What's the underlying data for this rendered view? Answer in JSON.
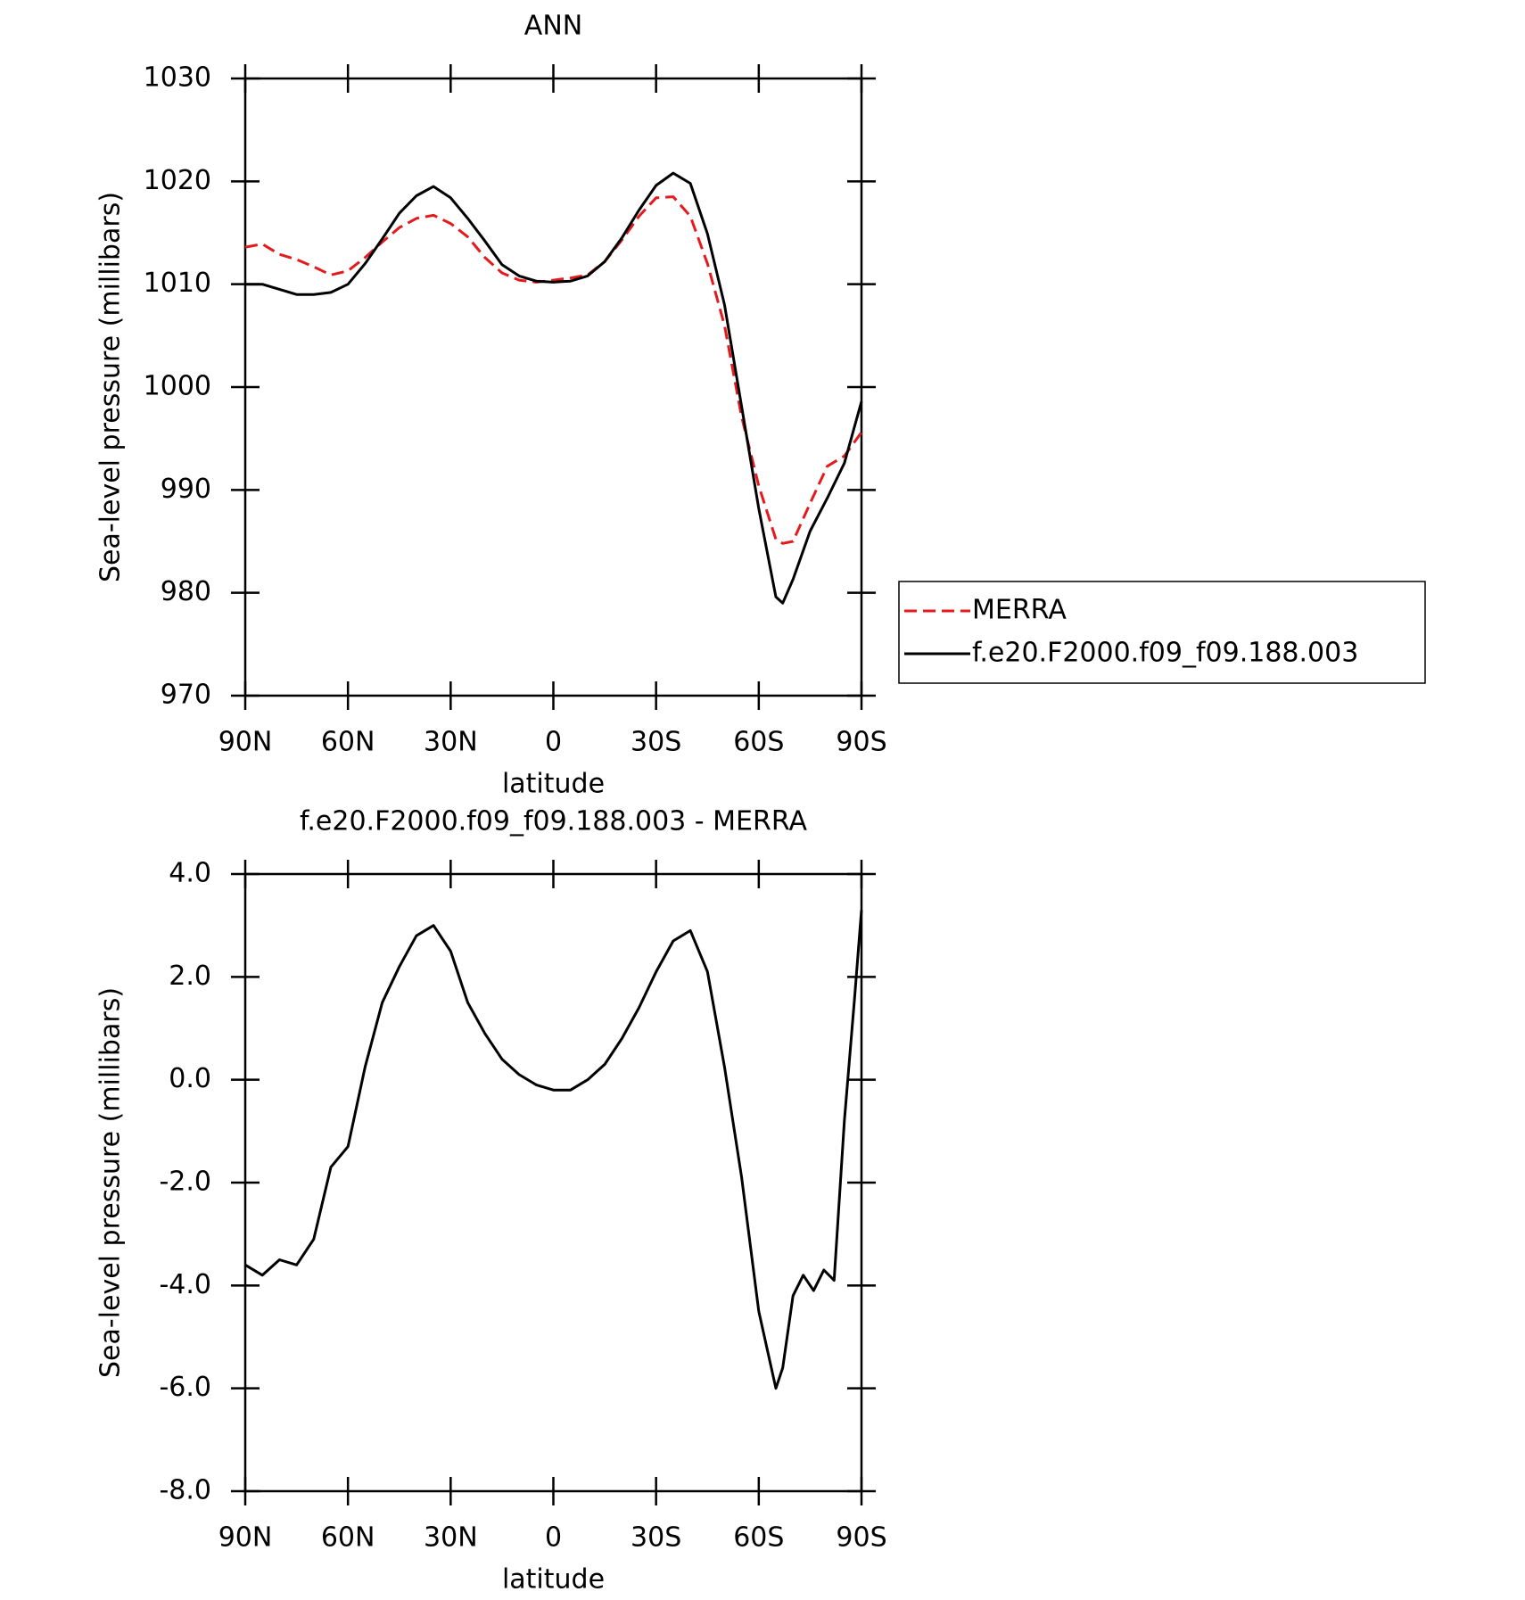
{
  "chart_data": [
    {
      "type": "line",
      "title": "ANN",
      "xlabel": "latitude",
      "ylabel": "Sea-level pressure (millibars)",
      "x": [
        90,
        85,
        80,
        75,
        70,
        65,
        60,
        55,
        50,
        45,
        40,
        35,
        30,
        25,
        20,
        15,
        10,
        5,
        0,
        -5,
        -10,
        -15,
        -20,
        -25,
        -30,
        -35,
        -40,
        -45,
        -50,
        -55,
        -60,
        -65,
        -67,
        -70,
        -75,
        -80,
        -85,
        -90
      ],
      "series": [
        {
          "name": "MERRA",
          "color": "#e41a1c",
          "linestyle": "dashed",
          "values": [
            1013.6,
            1013.9,
            1012.9,
            1012.4,
            1011.7,
            1010.9,
            1011.3,
            1012.6,
            1014.1,
            1015.5,
            1016.4,
            1016.7,
            1015.9,
            1014.6,
            1012.6,
            1011.1,
            1010.4,
            1010.2,
            1010.4,
            1010.6,
            1010.9,
            1012.2,
            1014.3,
            1016.6,
            1018.4,
            1018.5,
            1016.6,
            1012.0,
            1006.0,
            997.1,
            990.4,
            985.2,
            984.8,
            985.0,
            988.7,
            992.3,
            993.3,
            995.6
          ]
        },
        {
          "name": "f.e20.F2000.f09_f09.188.003",
          "color": "#000000",
          "linestyle": "solid",
          "values": [
            1010.0,
            1010.0,
            1009.5,
            1009.0,
            1009.0,
            1009.2,
            1010.0,
            1012.0,
            1014.4,
            1016.9,
            1018.6,
            1019.5,
            1018.4,
            1016.4,
            1014.2,
            1011.9,
            1010.8,
            1010.3,
            1010.2,
            1010.3,
            1010.8,
            1012.2,
            1014.5,
            1017.2,
            1019.6,
            1020.8,
            1019.8,
            1014.9,
            1008.0,
            998.1,
            988.2,
            979.6,
            979.0,
            981.3,
            986.0,
            989.2,
            992.6,
            998.6
          ]
        }
      ],
      "xlim": [
        90,
        -90
      ],
      "xticks": [
        {
          "value": 90,
          "label": "90N"
        },
        {
          "value": 60,
          "label": "60N"
        },
        {
          "value": 30,
          "label": "30N"
        },
        0,
        {
          "value": -30,
          "label": "30S"
        },
        {
          "value": -60,
          "label": "60S"
        },
        {
          "value": -90,
          "label": "90S"
        }
      ],
      "ylim": [
        970,
        1030
      ],
      "yticks": [
        970,
        980,
        990,
        1000,
        1010,
        1020,
        1030
      ],
      "legend": "right"
    },
    {
      "type": "line",
      "title": "f.e20.F2000.f09_f09.188.003 - MERRA",
      "xlabel": "latitude",
      "ylabel": "Sea-level pressure (millibars)",
      "x": [
        90,
        85,
        80,
        75,
        70,
        65,
        60,
        55,
        50,
        45,
        40,
        35,
        30,
        25,
        20,
        15,
        10,
        5,
        0,
        -5,
        -10,
        -15,
        -20,
        -25,
        -30,
        -35,
        -40,
        -45,
        -50,
        -55,
        -60,
        -65,
        -67,
        -70,
        -73,
        -76,
        -79,
        -82,
        -85,
        -88,
        -90
      ],
      "values": [
        -3.6,
        -3.8,
        -3.5,
        -3.6,
        -3.1,
        -1.7,
        -1.3,
        0.25,
        1.5,
        2.2,
        2.8,
        3.0,
        2.5,
        1.5,
        0.9,
        0.4,
        0.1,
        -0.1,
        -0.2,
        -0.2,
        0.0,
        0.3,
        0.8,
        1.4,
        2.1,
        2.7,
        2.9,
        2.1,
        0.25,
        -1.9,
        -4.5,
        -6.0,
        -5.6,
        -4.2,
        -3.8,
        -4.1,
        -3.7,
        -3.9,
        -0.8,
        1.6,
        3.3
      ],
      "color": "#000000",
      "xlim": [
        90,
        -90
      ],
      "xticks": [
        {
          "value": 90,
          "label": "90N"
        },
        {
          "value": 60,
          "label": "60N"
        },
        {
          "value": 30,
          "label": "30N"
        },
        0,
        {
          "value": -30,
          "label": "30S"
        },
        {
          "value": -60,
          "label": "60S"
        },
        {
          "value": -90,
          "label": "90S"
        }
      ],
      "ylim": [
        -8,
        4
      ],
      "yticks": [
        {
          "value": -8,
          "label": "-8.0"
        },
        {
          "value": -6,
          "label": "-6.0"
        },
        {
          "value": -4,
          "label": "-4.0"
        },
        {
          "value": -2,
          "label": "-2.0"
        },
        {
          "value": 0,
          "label": "0.0"
        },
        {
          "value": 2,
          "label": "2.0"
        },
        {
          "value": 4,
          "label": "4.0"
        }
      ]
    }
  ]
}
